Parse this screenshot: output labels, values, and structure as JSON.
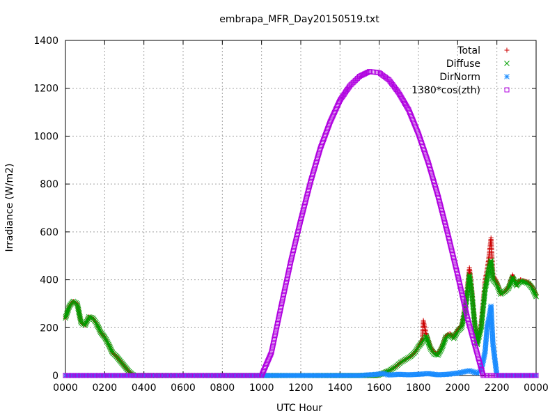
{
  "chart_data": {
    "type": "scatter",
    "title": "embrapa_MFR_Day20150519.txt",
    "xlabel": "UTC Hour",
    "ylabel": "Irradiance (W/m2)",
    "xlim": [
      0,
      24
    ],
    "ylim": [
      0,
      1400
    ],
    "xticks": [
      {
        "v": 0,
        "label": "0000"
      },
      {
        "v": 2,
        "label": "0200"
      },
      {
        "v": 4,
        "label": "0400"
      },
      {
        "v": 6,
        "label": "0600"
      },
      {
        "v": 8,
        "label": "0800"
      },
      {
        "v": 10,
        "label": "1000"
      },
      {
        "v": 12,
        "label": "1200"
      },
      {
        "v": 14,
        "label": "1400"
      },
      {
        "v": 16,
        "label": "1600"
      },
      {
        "v": 18,
        "label": "1800"
      },
      {
        "v": 20,
        "label": "2000"
      },
      {
        "v": 22,
        "label": "2200"
      },
      {
        "v": 24,
        "label": "0000"
      }
    ],
    "yticks": [
      {
        "v": 0,
        "label": "0"
      },
      {
        "v": 200,
        "label": "200"
      },
      {
        "v": 400,
        "label": "400"
      },
      {
        "v": 600,
        "label": "600"
      },
      {
        "v": 800,
        "label": "800"
      },
      {
        "v": 1000,
        "label": "1000"
      },
      {
        "v": 1200,
        "label": "1200"
      },
      {
        "v": 1400,
        "label": "1400"
      }
    ],
    "grid": true,
    "legend_position": "top-right",
    "series": [
      {
        "name": "Total",
        "marker": "plus",
        "color": "#cc0000",
        "points": [
          [
            0,
            240
          ],
          [
            0.2,
            290
          ],
          [
            0.4,
            310
          ],
          [
            0.6,
            300
          ],
          [
            0.8,
            220
          ],
          [
            1.0,
            210
          ],
          [
            1.2,
            245
          ],
          [
            1.4,
            240
          ],
          [
            1.6,
            215
          ],
          [
            1.8,
            180
          ],
          [
            2.0,
            160
          ],
          [
            2.2,
            130
          ],
          [
            2.4,
            95
          ],
          [
            2.6,
            80
          ],
          [
            2.8,
            60
          ],
          [
            3.0,
            40
          ],
          [
            3.2,
            20
          ],
          [
            3.4,
            5
          ],
          [
            3.5,
            0
          ],
          [
            15.9,
            0
          ],
          [
            16.2,
            10
          ],
          [
            16.5,
            20
          ],
          [
            16.8,
            35
          ],
          [
            17.1,
            55
          ],
          [
            17.4,
            70
          ],
          [
            17.6,
            80
          ],
          [
            17.8,
            95
          ],
          [
            18.0,
            120
          ],
          [
            18.2,
            150
          ],
          [
            18.25,
            230
          ],
          [
            18.4,
            170
          ],
          [
            18.6,
            120
          ],
          [
            18.8,
            95
          ],
          [
            19.0,
            90
          ],
          [
            19.2,
            120
          ],
          [
            19.4,
            165
          ],
          [
            19.6,
            175
          ],
          [
            19.8,
            160
          ],
          [
            20.0,
            190
          ],
          [
            20.2,
            210
          ],
          [
            20.4,
            300
          ],
          [
            20.6,
            450
          ],
          [
            20.7,
            380
          ],
          [
            20.9,
            200
          ],
          [
            21.0,
            140
          ],
          [
            21.2,
            220
          ],
          [
            21.4,
            400
          ],
          [
            21.5,
            440
          ],
          [
            21.6,
            500
          ],
          [
            21.7,
            575
          ],
          [
            21.8,
            420
          ],
          [
            22.0,
            390
          ],
          [
            22.2,
            340
          ],
          [
            22.4,
            350
          ],
          [
            22.6,
            370
          ],
          [
            22.8,
            420
          ],
          [
            23.0,
            380
          ],
          [
            23.2,
            400
          ],
          [
            23.4,
            395
          ],
          [
            23.6,
            390
          ],
          [
            23.8,
            370
          ],
          [
            24.0,
            335
          ]
        ]
      },
      {
        "name": "Diffuse",
        "marker": "cross",
        "color": "#009e00",
        "points": [
          [
            0,
            240
          ],
          [
            0.2,
            290
          ],
          [
            0.4,
            310
          ],
          [
            0.6,
            300
          ],
          [
            0.8,
            220
          ],
          [
            1.0,
            210
          ],
          [
            1.2,
            245
          ],
          [
            1.4,
            240
          ],
          [
            1.6,
            215
          ],
          [
            1.8,
            180
          ],
          [
            2.0,
            160
          ],
          [
            2.2,
            130
          ],
          [
            2.4,
            95
          ],
          [
            2.6,
            80
          ],
          [
            2.8,
            60
          ],
          [
            3.0,
            40
          ],
          [
            3.2,
            20
          ],
          [
            3.4,
            5
          ],
          [
            3.5,
            0
          ],
          [
            15.9,
            0
          ],
          [
            16.2,
            10
          ],
          [
            16.5,
            20
          ],
          [
            16.8,
            35
          ],
          [
            17.1,
            55
          ],
          [
            17.4,
            70
          ],
          [
            17.6,
            80
          ],
          [
            17.8,
            95
          ],
          [
            18.0,
            120
          ],
          [
            18.2,
            140
          ],
          [
            18.4,
            165
          ],
          [
            18.6,
            115
          ],
          [
            18.8,
            90
          ],
          [
            19.0,
            85
          ],
          [
            19.2,
            115
          ],
          [
            19.4,
            160
          ],
          [
            19.6,
            170
          ],
          [
            19.8,
            155
          ],
          [
            20.0,
            185
          ],
          [
            20.2,
            200
          ],
          [
            20.4,
            280
          ],
          [
            20.6,
            420
          ],
          [
            20.7,
            360
          ],
          [
            20.9,
            190
          ],
          [
            21.0,
            130
          ],
          [
            21.2,
            200
          ],
          [
            21.4,
            360
          ],
          [
            21.5,
            400
          ],
          [
            21.6,
            450
          ],
          [
            21.7,
            480
          ],
          [
            21.8,
            400
          ],
          [
            22.0,
            380
          ],
          [
            22.2,
            340
          ],
          [
            22.4,
            350
          ],
          [
            22.6,
            365
          ],
          [
            22.8,
            410
          ],
          [
            23.0,
            375
          ],
          [
            23.2,
            395
          ],
          [
            23.4,
            390
          ],
          [
            23.6,
            385
          ],
          [
            23.8,
            365
          ],
          [
            24.0,
            330
          ]
        ]
      },
      {
        "name": "DirNorm",
        "marker": "star",
        "color": "#1a8cff",
        "points": [
          [
            0,
            0
          ],
          [
            3,
            0
          ],
          [
            6,
            0
          ],
          [
            9,
            0
          ],
          [
            12,
            0
          ],
          [
            15,
            0
          ],
          [
            15.9,
            5
          ],
          [
            16.2,
            8
          ],
          [
            16.5,
            2
          ],
          [
            17.0,
            5
          ],
          [
            17.5,
            3
          ],
          [
            18.0,
            5
          ],
          [
            18.5,
            8
          ],
          [
            19.0,
            3
          ],
          [
            19.5,
            5
          ],
          [
            20.0,
            10
          ],
          [
            20.3,
            15
          ],
          [
            20.6,
            20
          ],
          [
            20.8,
            15
          ],
          [
            21.0,
            10
          ],
          [
            21.2,
            20
          ],
          [
            21.4,
            100
          ],
          [
            21.5,
            200
          ],
          [
            21.6,
            240
          ],
          [
            21.7,
            290
          ],
          [
            21.8,
            130
          ],
          [
            22.0,
            0
          ],
          [
            23.0,
            0
          ],
          [
            24.0,
            0
          ]
        ]
      },
      {
        "name": "1380*cos(zth)",
        "marker": "square",
        "color": "#b000e0",
        "points": [
          [
            0,
            0
          ],
          [
            10.0,
            0
          ],
          [
            10.5,
            95
          ],
          [
            11.0,
            290
          ],
          [
            11.5,
            480
          ],
          [
            12.0,
            650
          ],
          [
            12.5,
            810
          ],
          [
            13.0,
            950
          ],
          [
            13.5,
            1060
          ],
          [
            14.0,
            1150
          ],
          [
            14.5,
            1210
          ],
          [
            15.0,
            1250
          ],
          [
            15.5,
            1270
          ],
          [
            16.0,
            1265
          ],
          [
            16.5,
            1235
          ],
          [
            17.0,
            1180
          ],
          [
            17.5,
            1110
          ],
          [
            18.0,
            1010
          ],
          [
            18.5,
            890
          ],
          [
            19.0,
            750
          ],
          [
            19.5,
            590
          ],
          [
            20.0,
            420
          ],
          [
            20.5,
            240
          ],
          [
            21.0,
            90
          ],
          [
            21.3,
            0
          ],
          [
            24.0,
            0
          ]
        ]
      }
    ]
  }
}
